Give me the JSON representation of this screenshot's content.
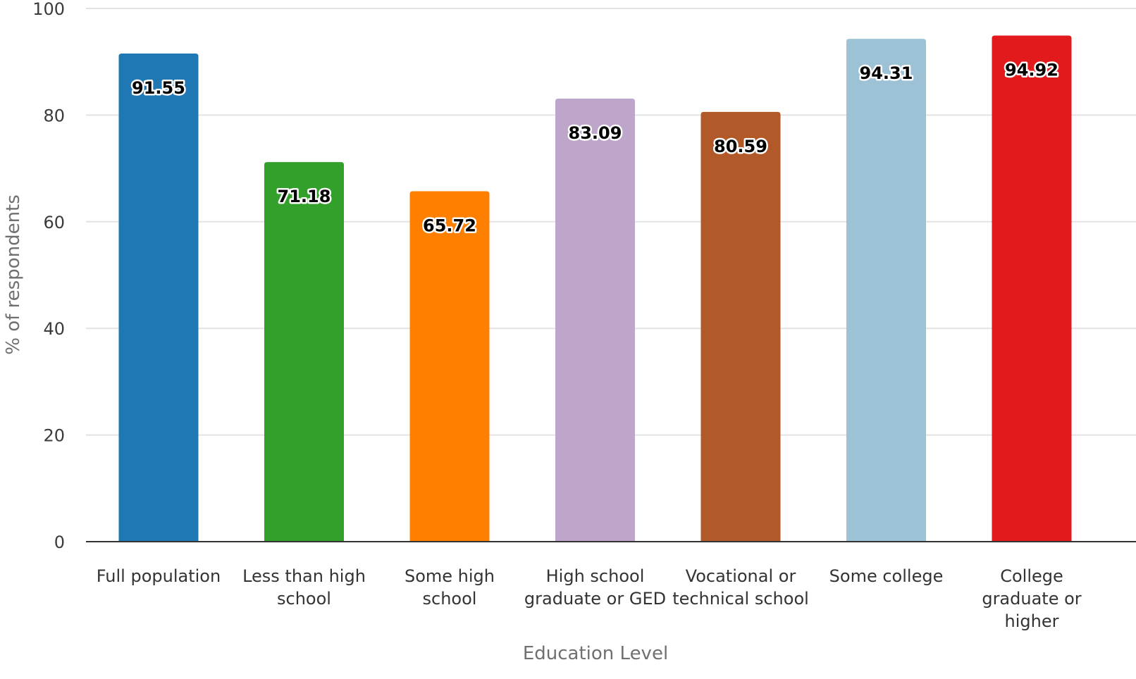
{
  "chart_data": {
    "type": "bar",
    "categories": [
      [
        "Full population"
      ],
      [
        "Less than high",
        "school"
      ],
      [
        "Some high",
        "school"
      ],
      [
        "High school",
        "graduate or GED"
      ],
      [
        "Vocational or",
        "technical school"
      ],
      [
        "Some college"
      ],
      [
        "College",
        "graduate or",
        "higher"
      ]
    ],
    "values": [
      91.55,
      71.18,
      65.72,
      83.09,
      80.59,
      94.31,
      94.92
    ],
    "data_labels": [
      "91.55",
      "71.18",
      "65.72",
      "83.09",
      "80.59",
      "94.31",
      "94.92"
    ],
    "colors": [
      "#1f77b4",
      "#33a02c",
      "#ff7f00",
      "#bea6cb",
      "#b15928",
      "#9dc2d6",
      "#e31a1c"
    ],
    "title": "",
    "xlabel": "Education Level",
    "ylabel": "% of respondents",
    "ylim": [
      0,
      100
    ],
    "yticks": [
      0,
      20,
      40,
      60,
      80,
      100
    ],
    "grid": true,
    "legend": "none"
  }
}
